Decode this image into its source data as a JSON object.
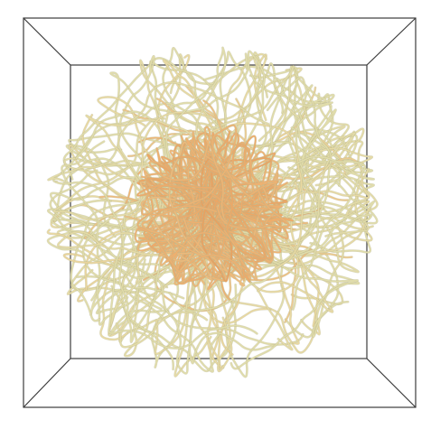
{
  "figure": {
    "colors": {
      "background": "#ffffff",
      "box_edge": "#3c3c3c",
      "fiber_outer": "#e0dcaa",
      "fiber_mid": "#ead8a0",
      "fiber_inner": "#eeb070",
      "core": "#e27a36",
      "fiber_shadow": "#b8b48a"
    }
  }
}
